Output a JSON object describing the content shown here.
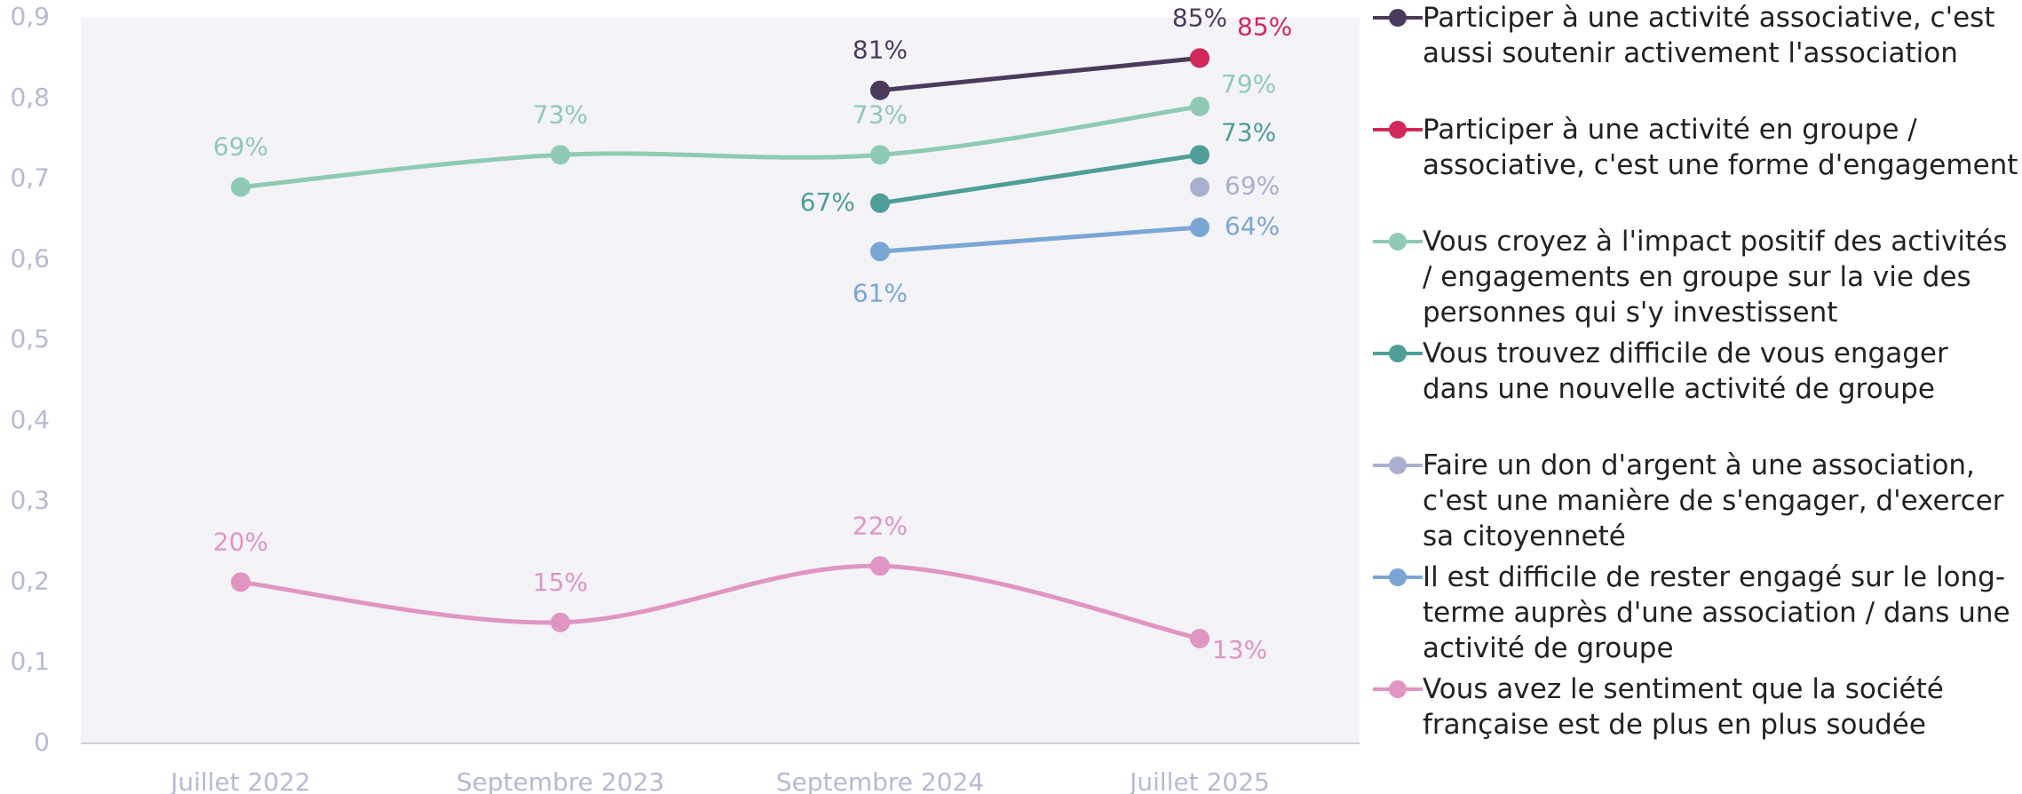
{
  "chart_data": {
    "type": "line",
    "categories": [
      "Juillet 2022",
      "Septembre 2023",
      "Septembre 2024",
      "Juillet 2025"
    ],
    "ylim": [
      0,
      0.9
    ],
    "yticks": [
      0,
      {
        "value": 0.1,
        "label": "0,1"
      },
      {
        "value": 0.2,
        "label": "0,2"
      },
      {
        "value": 0.3,
        "label": "0,3"
      },
      {
        "value": 0.4,
        "label": "0,4"
      },
      {
        "value": 0.5,
        "label": "0,5"
      },
      {
        "value": 0.6,
        "label": "0,6"
      },
      {
        "value": 0.7,
        "label": "0,7"
      },
      {
        "value": 0.8,
        "label": "0,8"
      },
      {
        "value": 0.9,
        "label": "0,9"
      }
    ],
    "grid": false,
    "legend": "right",
    "series": [
      {
        "name": "Participer à une activité associative, c'est aussi soutenir activement l'association",
        "color": "#4a3b5c",
        "values": [
          null,
          null,
          0.81,
          0.85
        ],
        "value_labels": [
          null,
          null,
          "81%",
          "85%"
        ]
      },
      {
        "name": "Participer à une activité en groupe / associative, c'est une forme d'engagement",
        "color": "#d1285a",
        "values": [
          null,
          null,
          null,
          0.85
        ],
        "value_labels": [
          null,
          null,
          null,
          "85%"
        ]
      },
      {
        "name": "Vous croyez à l'impact positif des activités / engagements en groupe sur la vie des personnes qui s'y investissent",
        "color": "#8fcab5",
        "values": [
          0.69,
          0.73,
          0.73,
          0.79
        ],
        "value_labels": [
          "69%",
          "73%",
          "73%",
          "79%"
        ]
      },
      {
        "name": "Vous trouvez difficile de vous engager dans une nouvelle activité de groupe",
        "color": "#4f9e98",
        "values": [
          null,
          null,
          0.67,
          0.73
        ],
        "value_labels": [
          null,
          null,
          "67%",
          "73%"
        ]
      },
      {
        "name": "Faire un don d'argent à une association, c'est une manière de s'engager, d'exercer sa citoyenneté",
        "color": "#a9b0cf",
        "values": [
          null,
          null,
          null,
          0.69
        ],
        "value_labels": [
          null,
          null,
          null,
          "69%"
        ]
      },
      {
        "name": "Il est difficile de rester engagé sur le long-terme auprès d'une association / dans une activité de groupe",
        "color": "#7aa6d6",
        "values": [
          null,
          null,
          0.61,
          0.64
        ],
        "value_labels": [
          null,
          null,
          "61%",
          "64%"
        ]
      },
      {
        "name": "Vous avez le sentiment que la société française est de plus en plus soudée",
        "color": "#e095c2",
        "values": [
          0.2,
          0.15,
          0.22,
          0.13
        ],
        "value_labels": [
          "20%",
          "15%",
          "22%",
          "13%"
        ]
      }
    ]
  }
}
